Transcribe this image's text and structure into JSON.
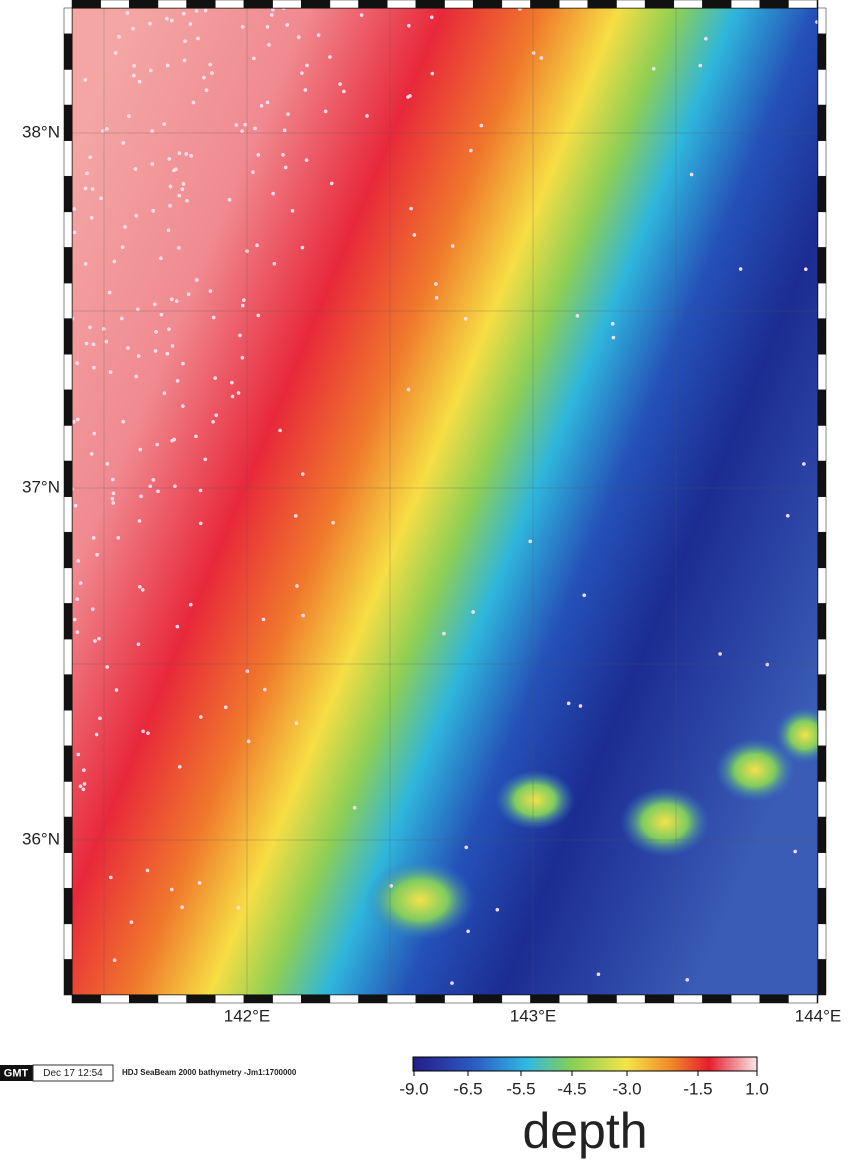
{
  "map": {
    "lat_labels": [
      "38°N",
      "37°N",
      "36°N"
    ],
    "lon_labels": [
      "142°E",
      "143°E",
      "144°E"
    ],
    "stamp": {
      "logo": "GMT",
      "date": "Dec 17 12:54",
      "caption": "HDJ SeaBeam 2000 bathymetry -Jm1:1700000"
    },
    "colorbar": {
      "ticks": [
        "-9.0",
        "-6.5",
        "-5.5",
        "-4.5",
        "-3.0",
        "-1.5",
        "1.0"
      ],
      "label": "depth"
    }
  }
}
